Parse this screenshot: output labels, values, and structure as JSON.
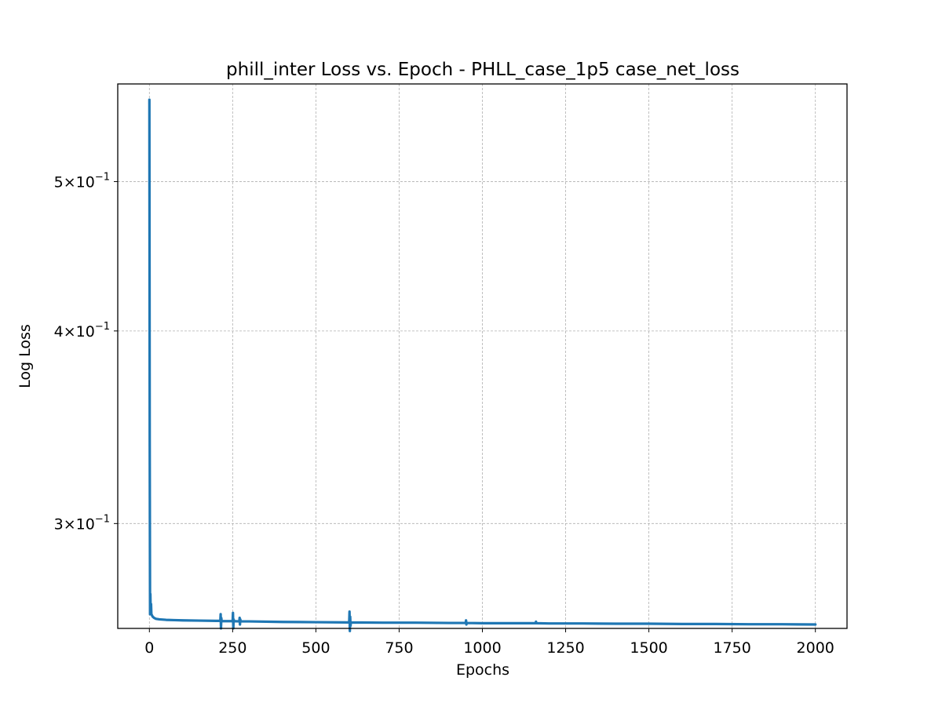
{
  "chart_data": {
    "type": "line",
    "title": "phill_inter Loss vs. Epoch - PHLL_case_1p5 case_net_loss",
    "xlabel": "Epochs",
    "ylabel": "Log Loss",
    "y_scale": "log",
    "xlim": [
      -95,
      2095
    ],
    "ylim": [
      0.2565,
      0.5785
    ],
    "xticks": [
      0,
      250,
      500,
      750,
      1000,
      1250,
      1500,
      1750,
      2000
    ],
    "yticks": [
      {
        "value": 0.3,
        "mantissa": "3",
        "base": "10",
        "exponent": "−1"
      },
      {
        "value": 0.4,
        "mantissa": "4",
        "base": "10",
        "exponent": "−1"
      },
      {
        "value": 0.5,
        "mantissa": "5",
        "base": "10",
        "exponent": "−1"
      }
    ],
    "grid": true,
    "series_color": "#1f77b4",
    "series": [
      {
        "x": [
          0,
          1,
          2,
          3,
          4,
          5,
          6,
          8,
          10,
          15,
          20,
          30,
          50,
          75,
          100,
          150,
          200,
          213,
          214,
          215,
          216,
          217,
          250,
          251,
          252,
          253,
          254,
          270,
          271,
          272,
          273,
          274,
          300,
          400,
          500,
          600,
          601,
          602,
          603,
          604,
          605,
          700,
          800,
          900,
          950,
          951,
          952,
          953,
          1000,
          1100,
          1160,
          1161,
          1162,
          1200,
          1300,
          1400,
          1500,
          1600,
          1700,
          1800,
          1900,
          2000
        ],
        "y": [
          0.565,
          0.34,
          0.262,
          0.27,
          0.262,
          0.266,
          0.262,
          0.2615,
          0.261,
          0.2605,
          0.2602,
          0.26,
          0.2598,
          0.2597,
          0.2596,
          0.2595,
          0.2594,
          0.2594,
          0.262,
          0.2565,
          0.2605,
          0.2593,
          0.2593,
          0.2625,
          0.2565,
          0.26,
          0.2593,
          0.2592,
          0.2606,
          0.258,
          0.26,
          0.2592,
          0.2592,
          0.259,
          0.2589,
          0.2588,
          0.263,
          0.2555,
          0.261,
          0.2575,
          0.2588,
          0.2587,
          0.2587,
          0.2586,
          0.2586,
          0.2596,
          0.258,
          0.2586,
          0.2585,
          0.2585,
          0.2585,
          0.2591,
          0.2585,
          0.2584,
          0.2584,
          0.2583,
          0.2583,
          0.2582,
          0.2582,
          0.2581,
          0.2581,
          0.258
        ]
      }
    ]
  }
}
